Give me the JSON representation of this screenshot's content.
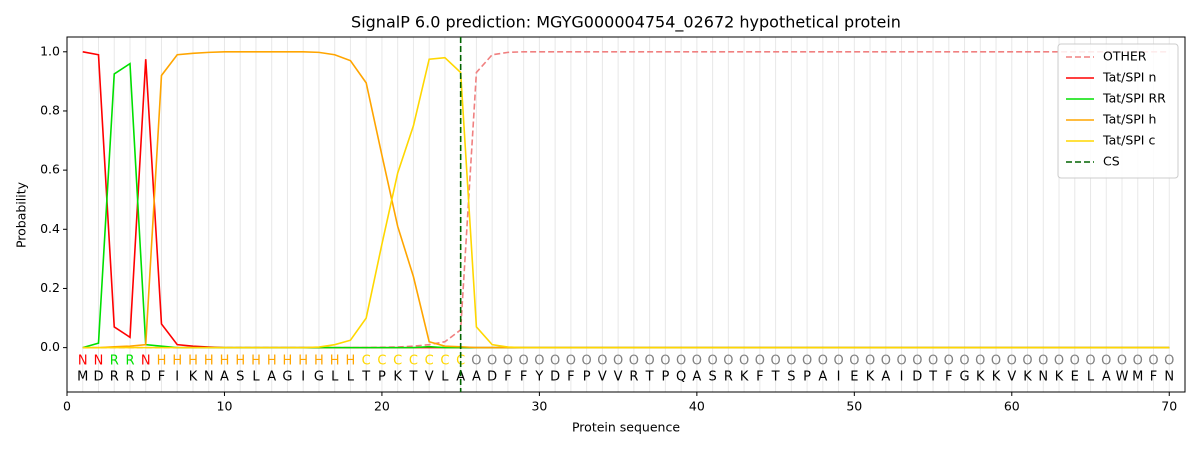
{
  "chart_data": {
    "type": "line",
    "title": "SignalP 6.0 prediction: MGYG000004754_02672 hypothetical protein",
    "xlabel": "Protein sequence",
    "ylabel": "Probability",
    "xlim": [
      0,
      71
    ],
    "ylim": [
      -0.15,
      1.05
    ],
    "xticks": [
      0,
      10,
      20,
      30,
      40,
      50,
      60,
      70
    ],
    "yticks": [
      {
        "value": 0,
        "label": "0.0"
      },
      {
        "value": 0.2,
        "label": "0.2"
      },
      {
        "value": 0.4,
        "label": "0.4"
      },
      {
        "value": 0.6,
        "label": "0.6"
      },
      {
        "value": 0.8,
        "label": "0.8"
      },
      {
        "value": 1,
        "label": "1.0"
      }
    ],
    "legend_position": "upper right",
    "x": [
      1,
      2,
      3,
      4,
      5,
      6,
      7,
      8,
      9,
      10,
      11,
      12,
      13,
      14,
      15,
      16,
      17,
      18,
      19,
      20,
      21,
      22,
      23,
      24,
      25,
      26,
      27,
      28,
      29,
      30,
      31,
      32,
      33,
      34,
      35,
      36,
      37,
      38,
      39,
      40,
      41,
      42,
      43,
      44,
      45,
      46,
      47,
      48,
      49,
      50,
      51,
      52,
      53,
      54,
      55,
      56,
      57,
      58,
      59,
      60,
      61,
      62,
      63,
      64,
      65,
      66,
      67,
      68,
      69,
      70
    ],
    "sequence": [
      "M",
      "D",
      "R",
      "R",
      "D",
      "F",
      "I",
      "K",
      "N",
      "A",
      "S",
      "L",
      "A",
      "G",
      "I",
      "G",
      "L",
      "L",
      "T",
      "P",
      "K",
      "T",
      "V",
      "L",
      "A",
      "A",
      "D",
      "F",
      "F",
      "Y",
      "D",
      "F",
      "P",
      "V",
      "V",
      "R",
      "T",
      "P",
      "Q",
      "A",
      "S",
      "R",
      "K",
      "F",
      "T",
      "S",
      "P",
      "A",
      "I",
      "E",
      "K",
      "A",
      "I",
      "D",
      "T",
      "F",
      "G",
      "K",
      "K",
      "V",
      "K",
      "N",
      "K",
      "E",
      "L",
      "A",
      "W",
      "M",
      "F",
      "N"
    ],
    "region_labels": [
      "N",
      "N",
      "R",
      "R",
      "N",
      "H",
      "H",
      "H",
      "H",
      "H",
      "H",
      "H",
      "H",
      "H",
      "H",
      "H",
      "H",
      "H",
      "C",
      "C",
      "C",
      "C",
      "C",
      "C",
      "C",
      "O",
      "O",
      "O",
      "O",
      "O",
      "O",
      "O",
      "O",
      "O",
      "O",
      "O",
      "O",
      "O",
      "O",
      "O",
      "O",
      "O",
      "O",
      "O",
      "O",
      "O",
      "O",
      "O",
      "O",
      "O",
      "O",
      "O",
      "O",
      "O",
      "O",
      "O",
      "O",
      "O",
      "O",
      "O",
      "O",
      "O",
      "O",
      "O",
      "O",
      "O",
      "O",
      "O",
      "O",
      "O"
    ],
    "region_colors": {
      "N": "#ff0000",
      "R": "#00e000",
      "H": "#ffa500",
      "C": "#ffd700",
      "O": "#808080"
    },
    "series": [
      {
        "name": "OTHER",
        "color": "#f08080",
        "linestyle": "dashed",
        "values": [
          0,
          0,
          0,
          0,
          0,
          0,
          0,
          0,
          0,
          0,
          0,
          0,
          0,
          0,
          0,
          0,
          0,
          0,
          0,
          0.001,
          0.002,
          0.005,
          0.01,
          0.02,
          0.06,
          0.93,
          0.99,
          0.998,
          1,
          1,
          1,
          1,
          1,
          1,
          1,
          1,
          1,
          1,
          1,
          1,
          1,
          1,
          1,
          1,
          1,
          1,
          1,
          1,
          1,
          1,
          1,
          1,
          1,
          1,
          1,
          1,
          1,
          1,
          1,
          1,
          1,
          1,
          1,
          1,
          1,
          1,
          1,
          1,
          1,
          1
        ]
      },
      {
        "name": "Tat/SPI n",
        "color": "#ff0000",
        "linestyle": "solid",
        "values": [
          1,
          0.99,
          0.07,
          0.035,
          0.975,
          0.08,
          0.01,
          0.005,
          0.002,
          0,
          0,
          0,
          0,
          0,
          0,
          0,
          0,
          0,
          0,
          0,
          0,
          0,
          0,
          0,
          0,
          0,
          0,
          0,
          0,
          0,
          0,
          0,
          0,
          0,
          0,
          0,
          0,
          0,
          0,
          0,
          0,
          0,
          0,
          0,
          0,
          0,
          0,
          0,
          0,
          0,
          0,
          0,
          0,
          0,
          0,
          0,
          0,
          0,
          0,
          0,
          0,
          0,
          0,
          0,
          0,
          0,
          0,
          0,
          0,
          0
        ]
      },
      {
        "name": "Tat/SPI RR",
        "color": "#00e000",
        "linestyle": "solid",
        "values": [
          0,
          0.015,
          0.925,
          0.96,
          0.01,
          0.005,
          0,
          0,
          0,
          0,
          0,
          0,
          0,
          0,
          0,
          0,
          0,
          0,
          0,
          0,
          0,
          0,
          0.003,
          0,
          0,
          0,
          0,
          0,
          0,
          0,
          0,
          0,
          0,
          0,
          0,
          0,
          0,
          0,
          0,
          0,
          0,
          0,
          0,
          0,
          0,
          0,
          0,
          0,
          0,
          0,
          0,
          0,
          0,
          0,
          0,
          0,
          0,
          0,
          0,
          0,
          0,
          0,
          0,
          0,
          0,
          0,
          0,
          0,
          0,
          0
        ]
      },
      {
        "name": "Tat/SPI h",
        "color": "#ffa500",
        "linestyle": "solid",
        "values": [
          0,
          0,
          0.003,
          0.005,
          0.01,
          0.92,
          0.99,
          0.995,
          0.998,
          1,
          1,
          1,
          1,
          1,
          1,
          0.998,
          0.99,
          0.97,
          0.895,
          0.65,
          0.41,
          0.24,
          0.02,
          0.005,
          0.003,
          0,
          0,
          0,
          0,
          0,
          0,
          0,
          0,
          0,
          0,
          0,
          0,
          0,
          0,
          0,
          0,
          0,
          0,
          0,
          0,
          0,
          0,
          0,
          0,
          0,
          0,
          0,
          0,
          0,
          0,
          0,
          0,
          0,
          0,
          0,
          0,
          0,
          0,
          0,
          0,
          0,
          0,
          0,
          0,
          0
        ]
      },
      {
        "name": "Tat/SPI c",
        "color": "#ffd700",
        "linestyle": "solid",
        "values": [
          0,
          0,
          0,
          0,
          0,
          0,
          0,
          0,
          0,
          0,
          0,
          0,
          0,
          0,
          0,
          0.002,
          0.01,
          0.025,
          0.1,
          0.35,
          0.59,
          0.75,
          0.975,
          0.98,
          0.93,
          0.07,
          0.01,
          0.002,
          0,
          0,
          0,
          0,
          0,
          0,
          0,
          0,
          0,
          0,
          0,
          0,
          0,
          0,
          0,
          0,
          0,
          0,
          0,
          0,
          0,
          0,
          0,
          0,
          0,
          0,
          0,
          0,
          0,
          0,
          0,
          0,
          0,
          0,
          0,
          0,
          0,
          0,
          0,
          0,
          0,
          0
        ]
      }
    ],
    "cs": {
      "name": "CS",
      "color": "#006400",
      "linestyle": "dashed",
      "position": 25
    }
  }
}
